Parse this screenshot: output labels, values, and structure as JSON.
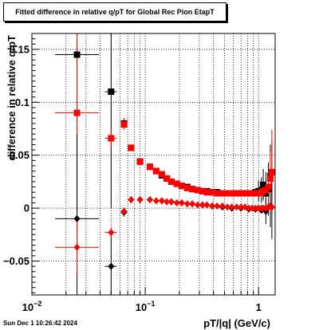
{
  "title": "Fitted difference in relative q/pT for Global Rec Pion EtapT",
  "footer_text": "Sun Dec  1 10:26:42 2024",
  "colors": {
    "series1": "#000000",
    "series2": "#ff0000",
    "grid": "#000000",
    "frame": "#000000"
  },
  "chart_data": {
    "type": "scatter",
    "title": "Fitted difference in relative q/pT for Global Rec Pion EtapT",
    "xlabel": "pT/|q| (GeV/c)",
    "ylabel": "difference in relative q/pT",
    "xscale": "log",
    "xlim": [
      0.01,
      1.4
    ],
    "ylim": [
      -0.082,
      0.165
    ],
    "grid": true,
    "x_ticks": [
      {
        "value": 0.01,
        "label": "10^-2"
      },
      {
        "value": 0.1,
        "label": "10^-1"
      },
      {
        "value": 1,
        "label": "1"
      }
    ],
    "y_ticks": [
      {
        "value": -0.05,
        "label": "−0.05"
      },
      {
        "value": 0,
        "label": "0"
      },
      {
        "value": 0.05,
        "label": "0.05"
      },
      {
        "value": 0.1,
        "label": "0.1"
      },
      {
        "value": 0.15,
        "label": "0.15"
      }
    ],
    "series": [
      {
        "marker": "square",
        "color": "#000000",
        "points": [
          {
            "x": 0.025,
            "y": 0.145,
            "xerr": [
              0.016,
              0.039
            ],
            "yerr": 0.17
          },
          {
            "x": 0.05,
            "y": 0.11,
            "xerr": [
              0.044,
              0.056
            ],
            "yerr": 0.11
          },
          {
            "x": 0.065,
            "y": 0.08,
            "xerr": [
              0.061,
              0.069
            ],
            "yerr": 0.005
          },
          {
            "x": 0.075,
            "y": 0.057
          },
          {
            "x": 0.09,
            "y": 0.044
          },
          {
            "x": 0.11,
            "y": 0.039
          },
          {
            "x": 0.125,
            "y": 0.035
          },
          {
            "x": 0.14,
            "y": 0.031
          },
          {
            "x": 0.155,
            "y": 0.028
          },
          {
            "x": 0.17,
            "y": 0.025
          },
          {
            "x": 0.19,
            "y": 0.023
          },
          {
            "x": 0.21,
            "y": 0.021
          },
          {
            "x": 0.235,
            "y": 0.02
          },
          {
            "x": 0.26,
            "y": 0.018
          },
          {
            "x": 0.29,
            "y": 0.017
          },
          {
            "x": 0.32,
            "y": 0.016
          },
          {
            "x": 0.35,
            "y": 0.016
          },
          {
            "x": 0.39,
            "y": 0.015
          },
          {
            "x": 0.43,
            "y": 0.015
          },
          {
            "x": 0.48,
            "y": 0.014
          },
          {
            "x": 0.53,
            "y": 0.014
          },
          {
            "x": 0.58,
            "y": 0.014
          },
          {
            "x": 0.64,
            "y": 0.014
          },
          {
            "x": 0.7,
            "y": 0.014
          },
          {
            "x": 0.76,
            "y": 0.014
          },
          {
            "x": 0.82,
            "y": 0.014
          },
          {
            "x": 0.88,
            "y": 0.014
          },
          {
            "x": 0.94,
            "y": 0.015
          },
          {
            "x": 1.0,
            "y": 0.016,
            "yerr": 0.01
          },
          {
            "x": 1.06,
            "y": 0.017,
            "yerr": 0.012
          },
          {
            "x": 1.1,
            "y": 0.022,
            "yerr": 0.015
          },
          {
            "x": 1.16,
            "y": 0.014,
            "yerr": 0.02
          },
          {
            "x": 1.22,
            "y": 0.018,
            "yerr": 0.025
          },
          {
            "x": 1.27,
            "y": 0.03,
            "yerr": 0.03
          },
          {
            "x": 1.31,
            "y": 0.034,
            "yerr": 0.03
          }
        ]
      },
      {
        "marker": "square",
        "color": "#ff0000",
        "points": [
          {
            "x": 0.025,
            "y": 0.09,
            "xerr": [
              0.016,
              0.039
            ],
            "yerr": 0.09
          },
          {
            "x": 0.05,
            "y": 0.066,
            "xerr": [
              0.044,
              0.056
            ],
            "yerr": 0.008
          },
          {
            "x": 0.065,
            "y": 0.079,
            "xerr": [
              0.061,
              0.069
            ],
            "yerr": 0.005
          },
          {
            "x": 0.075,
            "y": 0.057
          },
          {
            "x": 0.09,
            "y": 0.044
          },
          {
            "x": 0.11,
            "y": 0.039
          },
          {
            "x": 0.125,
            "y": 0.035
          },
          {
            "x": 0.14,
            "y": 0.032
          },
          {
            "x": 0.155,
            "y": 0.028
          },
          {
            "x": 0.17,
            "y": 0.025
          },
          {
            "x": 0.19,
            "y": 0.023
          },
          {
            "x": 0.21,
            "y": 0.021
          },
          {
            "x": 0.235,
            "y": 0.019
          },
          {
            "x": 0.26,
            "y": 0.018
          },
          {
            "x": 0.29,
            "y": 0.017
          },
          {
            "x": 0.32,
            "y": 0.016
          },
          {
            "x": 0.35,
            "y": 0.015
          },
          {
            "x": 0.39,
            "y": 0.015
          },
          {
            "x": 0.43,
            "y": 0.014
          },
          {
            "x": 0.48,
            "y": 0.014
          },
          {
            "x": 0.53,
            "y": 0.014
          },
          {
            "x": 0.58,
            "y": 0.014
          },
          {
            "x": 0.64,
            "y": 0.014
          },
          {
            "x": 0.7,
            "y": 0.014
          },
          {
            "x": 0.76,
            "y": 0.014
          },
          {
            "x": 0.82,
            "y": 0.014
          },
          {
            "x": 0.88,
            "y": 0.014
          },
          {
            "x": 0.94,
            "y": 0.014
          },
          {
            "x": 1.0,
            "y": 0.014
          },
          {
            "x": 1.06,
            "y": 0.015
          },
          {
            "x": 1.1,
            "y": 0.016
          },
          {
            "x": 1.16,
            "y": 0.017
          },
          {
            "x": 1.22,
            "y": 0.02,
            "yerr": 0.015
          },
          {
            "x": 1.27,
            "y": 0.028,
            "yerr": 0.025
          },
          {
            "x": 1.31,
            "y": 0.034,
            "yerr": 0.04
          }
        ]
      },
      {
        "marker": "diamond",
        "color": "#000000",
        "points": [
          {
            "x": 0.025,
            "y": -0.01,
            "xerr": [
              0.016,
              0.039
            ],
            "yerr": 0.08
          },
          {
            "x": 0.05,
            "y": -0.055,
            "xerr": [
              0.044,
              0.056
            ],
            "yerr": 0.03
          },
          {
            "x": 0.065,
            "y": -0.004,
            "xerr": [
              0.061,
              0.069
            ],
            "yerr": 0.004
          },
          {
            "x": 0.075,
            "y": 0.008
          },
          {
            "x": 0.09,
            "y": 0.008
          },
          {
            "x": 0.11,
            "y": 0.008
          },
          {
            "x": 0.14,
            "y": 0.007
          },
          {
            "x": 0.17,
            "y": 0.006
          },
          {
            "x": 0.21,
            "y": 0.005
          },
          {
            "x": 0.26,
            "y": 0.004
          },
          {
            "x": 0.32,
            "y": 0.003
          },
          {
            "x": 0.39,
            "y": 0.002
          },
          {
            "x": 0.48,
            "y": 0.001
          },
          {
            "x": 0.58,
            "y": 0.0
          },
          {
            "x": 0.7,
            "y": 0.0
          },
          {
            "x": 0.82,
            "y": -0.001
          },
          {
            "x": 0.94,
            "y": -0.001
          },
          {
            "x": 1.06,
            "y": -0.002
          },
          {
            "x": 1.16,
            "y": -0.003,
            "yerr": 0.012
          },
          {
            "x": 1.27,
            "y": 0.002,
            "yerr": 0.02
          },
          {
            "x": 1.31,
            "y": 0.001,
            "yerr": 0.03
          }
        ]
      },
      {
        "marker": "diamond",
        "color": "#ff0000",
        "points": [
          {
            "x": 0.025,
            "y": -0.037,
            "xerr": [
              0.016,
              0.039
            ],
            "yerr": 0.025
          },
          {
            "x": 0.05,
            "y": -0.023,
            "xerr": [
              0.044,
              0.056
            ],
            "yerr": 0.005
          },
          {
            "x": 0.065,
            "y": -0.003,
            "xerr": [
              0.061,
              0.069
            ],
            "yerr": 0.003
          },
          {
            "x": 0.075,
            "y": 0.008
          },
          {
            "x": 0.09,
            "y": 0.008
          },
          {
            "x": 0.11,
            "y": 0.008
          },
          {
            "x": 0.125,
            "y": 0.007
          },
          {
            "x": 0.14,
            "y": 0.007
          },
          {
            "x": 0.155,
            "y": 0.006
          },
          {
            "x": 0.17,
            "y": 0.006
          },
          {
            "x": 0.19,
            "y": 0.005
          },
          {
            "x": 0.21,
            "y": 0.005
          },
          {
            "x": 0.235,
            "y": 0.004
          },
          {
            "x": 0.26,
            "y": 0.004
          },
          {
            "x": 0.29,
            "y": 0.003
          },
          {
            "x": 0.32,
            "y": 0.003
          },
          {
            "x": 0.35,
            "y": 0.003
          },
          {
            "x": 0.39,
            "y": 0.002
          },
          {
            "x": 0.43,
            "y": 0.002
          },
          {
            "x": 0.48,
            "y": 0.002
          },
          {
            "x": 0.53,
            "y": 0.001
          },
          {
            "x": 0.58,
            "y": 0.001
          },
          {
            "x": 0.64,
            "y": 0.001
          },
          {
            "x": 0.7,
            "y": 0.001
          },
          {
            "x": 0.76,
            "y": 0.001
          },
          {
            "x": 0.82,
            "y": 0.0
          },
          {
            "x": 0.88,
            "y": 0.0
          },
          {
            "x": 0.94,
            "y": 0.0
          },
          {
            "x": 1.0,
            "y": 0.0
          },
          {
            "x": 1.06,
            "y": 0.0
          },
          {
            "x": 1.1,
            "y": 0.0
          },
          {
            "x": 1.16,
            "y": 0.0
          },
          {
            "x": 1.22,
            "y": 0.001
          },
          {
            "x": 1.27,
            "y": 0.001
          },
          {
            "x": 1.31,
            "y": 0.001
          }
        ]
      }
    ]
  }
}
